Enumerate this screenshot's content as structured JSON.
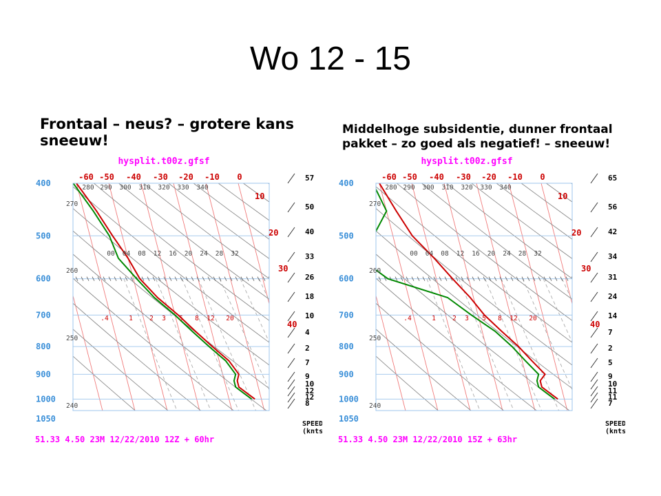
{
  "slide": {
    "title": "Wo 12 - 15",
    "left_subtitle": "Frontaal – neus? – grotere kans sneeuw!",
    "right_subtitle": "Middelhoge subsidentie, dunner frontaal pakket – zo goed als negatief! – sneeuw!"
  },
  "colors": {
    "temperature": "#cc0000",
    "dewpoint": "#008800",
    "header": "#ff00ff",
    "pressure_label": "#3a8fd8",
    "isotherm": "#f07a7a",
    "dry_adiabat": "#888888",
    "mixing_ratio": "#aaaaaa",
    "frame": "#9cc4ec"
  },
  "chart_data": [
    {
      "type": "line",
      "title": "hysplit.t00z.gfsf",
      "footer": "51.33     4.50    23M     12/22/2010    12Z   + 60hr",
      "y_scale": "log-pressure",
      "ylim": [
        1050,
        400
      ],
      "pressure_levels": [
        "400",
        "500",
        "600",
        "700",
        "800",
        "900",
        "1000",
        "1050"
      ],
      "temperature_labels": [
        "-60",
        "-50",
        "-40",
        "-30",
        "-20",
        "-10",
        "0",
        "10",
        "20",
        "30",
        "40"
      ],
      "theta_labels": [
        "280",
        "290",
        "300",
        "310",
        "320",
        "330",
        "340",
        "270",
        "260",
        "250",
        "240"
      ],
      "mixing_ratio_labels_mid": [
        "00",
        "04",
        "08",
        "12",
        "16",
        "20",
        "24",
        "28",
        "32"
      ],
      "mixing_ratio_labels_low": [
        ".4",
        "1",
        "2",
        "3",
        "5",
        "8",
        "12",
        "20"
      ],
      "wind_speeds": [
        "57",
        "50",
        "40",
        "33",
        "26",
        "18",
        "10",
        "4",
        "2",
        "7",
        "9",
        "10",
        "12",
        "12",
        "8"
      ],
      "wind_speed_label": "SPEED",
      "wind_units_label": "(knts)",
      "series": [
        {
          "name": "temperature",
          "points": [
            [
              -40,
              400
            ],
            [
              -36,
              450
            ],
            [
              -33,
              500
            ],
            [
              -30,
              550
            ],
            [
              -28,
              600
            ],
            [
              -24,
              650
            ],
            [
              -19,
              700
            ],
            [
              -15,
              750
            ],
            [
              -11,
              800
            ],
            [
              -7,
              850
            ],
            [
              -5,
              900
            ],
            [
              -6,
              925
            ],
            [
              -6,
              950
            ],
            [
              -4,
              975
            ],
            [
              -2,
              1000
            ]
          ]
        },
        {
          "name": "dewpoint",
          "points": [
            [
              -41,
              400
            ],
            [
              -37,
              450
            ],
            [
              -34,
              500
            ],
            [
              -33,
              550
            ],
            [
              -29,
              600
            ],
            [
              -25,
              650
            ],
            [
              -20,
              700
            ],
            [
              -16,
              750
            ],
            [
              -12,
              800
            ],
            [
              -8,
              850
            ],
            [
              -6,
              900
            ],
            [
              -7,
              925
            ],
            [
              -7,
              950
            ],
            [
              -5,
              975
            ],
            [
              -3,
              1000
            ]
          ]
        }
      ]
    },
    {
      "type": "line",
      "title": "hysplit.t00z.gfsf",
      "footer": "51.33     4.50    23M     12/22/2010    15Z   + 63hr",
      "y_scale": "log-pressure",
      "ylim": [
        1050,
        400
      ],
      "pressure_levels": [
        "400",
        "500",
        "600",
        "700",
        "800",
        "900",
        "1000",
        "1050"
      ],
      "temperature_labels": [
        "-60",
        "-50",
        "-40",
        "-30",
        "-20",
        "-10",
        "0",
        "10",
        "20",
        "30",
        "40"
      ],
      "theta_labels": [
        "280",
        "290",
        "300",
        "310",
        "320",
        "330",
        "340",
        "270",
        "260",
        "250",
        "240"
      ],
      "mixing_ratio_labels_mid": [
        "00",
        "04",
        "08",
        "12",
        "16",
        "20",
        "24",
        "28",
        "32"
      ],
      "mixing_ratio_labels_low": [
        ".4",
        "1",
        "2",
        "3",
        "5",
        "8",
        "12",
        "20"
      ],
      "wind_speeds": [
        "65",
        "56",
        "42",
        "34",
        "31",
        "24",
        "14",
        "7",
        "2",
        "5",
        "9",
        "10",
        "11",
        "11",
        "7"
      ],
      "wind_speed_label": "SPEED",
      "wind_units_label": "(knts)",
      "series": [
        {
          "name": "temperature",
          "points": [
            [
              -40,
              400
            ],
            [
              -37,
              450
            ],
            [
              -34,
              500
            ],
            [
              -29,
              550
            ],
            [
              -25,
              600
            ],
            [
              -21,
              650
            ],
            [
              -18,
              700
            ],
            [
              -14,
              750
            ],
            [
              -10,
              800
            ],
            [
              -7,
              850
            ],
            [
              -4,
              900
            ],
            [
              -6,
              925
            ],
            [
              -6,
              950
            ],
            [
              -4,
              975
            ],
            [
              -2,
              1000
            ]
          ]
        },
        {
          "name": "dewpoint",
          "points": [
            [
              -42,
              400
            ],
            [
              -40,
              450
            ],
            [
              -46,
              500
            ],
            [
              -52,
              550
            ],
            [
              -45,
              600
            ],
            [
              -28,
              650
            ],
            [
              -22,
              700
            ],
            [
              -16,
              750
            ],
            [
              -12,
              800
            ],
            [
              -9,
              850
            ],
            [
              -6,
              900
            ],
            [
              -7,
              925
            ],
            [
              -7,
              950
            ],
            [
              -5,
              975
            ],
            [
              -3,
              1000
            ]
          ]
        }
      ]
    }
  ]
}
